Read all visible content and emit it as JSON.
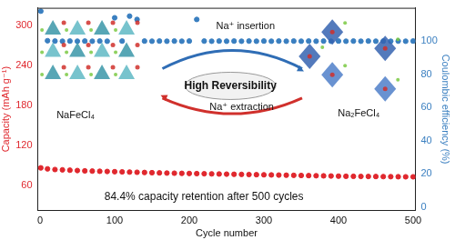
{
  "chart_data": {
    "type": "scatter",
    "x_label": "Cycle number",
    "y_label": "Capacity (mAh g⁻¹)",
    "y2_label": "Coulombic efficiency (%)",
    "x": [
      1,
      10,
      20,
      30,
      40,
      50,
      60,
      70,
      80,
      90,
      100,
      110,
      120,
      130,
      140,
      150,
      160,
      170,
      180,
      190,
      200,
      210,
      220,
      230,
      240,
      250,
      260,
      270,
      280,
      290,
      300,
      310,
      320,
      330,
      340,
      350,
      360,
      370,
      380,
      390,
      400,
      410,
      420,
      430,
      440,
      450,
      460,
      470,
      480,
      490,
      500
    ],
    "series": [
      {
        "color": "#e0282e",
        "marker": "circle",
        "values": [
          86,
          84.5,
          83.5,
          83,
          82.5,
          82,
          81.5,
          81.2,
          80.9,
          80.6,
          80.3,
          80,
          79.7,
          79.4,
          79.1,
          78.8,
          78.5,
          78.2,
          78,
          77.8,
          77.6,
          77.4,
          77.2,
          77,
          76.8,
          76.6,
          76.4,
          76.2,
          76,
          75.8,
          75.6,
          75.4,
          75.2,
          75,
          74.8,
          74.6,
          74.4,
          74.2,
          74,
          73.8,
          73.6,
          73.4,
          73.3,
          73.2,
          73.1,
          73,
          72.9,
          72.8,
          72.7,
          72.6,
          72.6
        ]
      },
      {
        "color": "#3a7fc0",
        "marker": "circle",
        "axis": "y2",
        "values": [
          118,
          100.2,
          100,
          99.9,
          100,
          99.9,
          100,
          99.9,
          100,
          99.9,
          114,
          100,
          115,
          113,
          100,
          99.9,
          100,
          99.9,
          100,
          99.9,
          100,
          113,
          100,
          99.9,
          100,
          99.9,
          100,
          99.9,
          100,
          99.9,
          100,
          99.9,
          100,
          99.9,
          100,
          99.9,
          100,
          99.9,
          100,
          99.9,
          100,
          99.9,
          100,
          99.9,
          100,
          99.9,
          100,
          99.9,
          100,
          99.9,
          100
        ]
      }
    ],
    "xlim": [
      -3,
      503
    ],
    "xticks": [
      0,
      100,
      200,
      300,
      400,
      500
    ],
    "ylim": [
      22,
      326
    ],
    "yticks": [
      60,
      120,
      180,
      240,
      300
    ],
    "y2lim": [
      -2,
      120
    ],
    "y2ticks": [
      0,
      20,
      40,
      60,
      80,
      100
    ],
    "grid": false,
    "annotations": [
      {
        "text": "NaFeCl₄"
      },
      {
        "text": "Na₂FeCl₄"
      },
      {
        "text": "Na⁺ insertion"
      },
      {
        "text": "Na⁺ extraction"
      },
      {
        "text": "High Reversibility"
      },
      {
        "text": "84.4% capacity retention after 500 cycles"
      }
    ]
  }
}
